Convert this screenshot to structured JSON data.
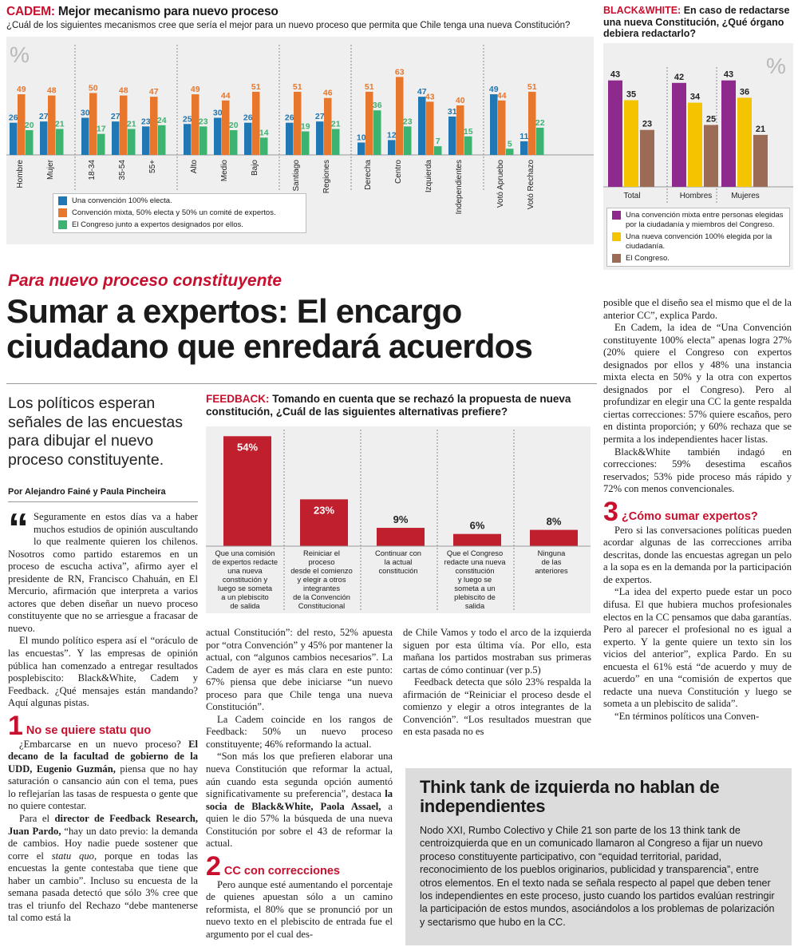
{
  "cadem": {
    "brand": "CADEM:",
    "title": "Mejor mecanismo para nuevo proceso",
    "question": "¿Cuál de los siguientes mecanismos cree que sería el mejor para un nuevo proceso que permita que Chile tenga una nueva Constitución?",
    "pct_symbol": "%"
  },
  "bw": {
    "brand": "BLACK&WHITE:",
    "title": "En caso de redactarse una nueva Constitución, ¿Qué órgano debiera redactarlo?",
    "pct_symbol": "%"
  },
  "feedback": {
    "brand": "FEEDBACK:",
    "title": "Tomando en cuenta que se rechazó la propuesta de nueva constitución, ¿Cuál de las siguientes alternativas prefiere?"
  },
  "chart_data": [
    {
      "type": "bar",
      "source": "CADEM",
      "categories": [
        "Hombre",
        "Mujer",
        "18-34",
        "35-54",
        "55+",
        "Alto",
        "Medio",
        "Bajo",
        "Santiago",
        "Regiones",
        "Derecha",
        "Centro",
        "Izquierda",
        "Independientes",
        "Votó Apruebo",
        "Votó Rechazo"
      ],
      "series": [
        {
          "name": "Una convención 100% electa.",
          "color": "#1f77b4",
          "values": [
            26,
            27,
            30,
            27,
            23,
            25,
            30,
            26,
            26,
            27,
            10,
            12,
            47,
            31,
            49,
            11
          ]
        },
        {
          "name": "Convención mixta, 50% electa y 50% un comité de expertos.",
          "color": "#e8772e",
          "values": [
            49,
            48,
            50,
            48,
            47,
            49,
            44,
            51,
            51,
            46,
            51,
            63,
            43,
            40,
            44,
            51
          ]
        },
        {
          "name": "El Congreso junto a expertos designados por ellos.",
          "color": "#3cb371",
          "values": [
            20,
            21,
            17,
            21,
            24,
            23,
            20,
            14,
            19,
            21,
            36,
            23,
            7,
            15,
            5,
            22
          ]
        }
      ]
    },
    {
      "type": "bar",
      "source": "BLACK&WHITE",
      "categories": [
        "Total",
        "Hombres",
        "Mujeres"
      ],
      "series": [
        {
          "name": "Una convención mixta entre personas elegidas por la ciudadanía y miembros del Congreso.",
          "color": "#8e2a8e",
          "values": [
            43,
            42,
            43
          ]
        },
        {
          "name": "Una nueva convención 100% elegida por la ciudadanía.",
          "color": "#f5c400",
          "values": [
            35,
            34,
            36
          ]
        },
        {
          "name": "El Congreso.",
          "color": "#9b6b55",
          "values": [
            23,
            25,
            21
          ]
        }
      ]
    },
    {
      "type": "bar",
      "source": "FEEDBACK",
      "categories": [
        "Que una comisión de expertos redacte una nueva constitución y luego se someta a un plebiscito de salida",
        "Reiniciar el proceso desde el comienzo y elegir a otros integrantes de la Convención Constitucional",
        "Continuar con la actual constitución",
        "Que el Congreso redacte una nueva constitución y luego se someta a un plebiscito de salida",
        "Ninguna de las anteriores"
      ],
      "category_lines": [
        [
          "Que una comisión",
          "de expertos redacte",
          "una nueva",
          "constitución y",
          "luego se someta",
          "a un plebiscito",
          "de salida"
        ],
        [
          "Reiniciar el",
          "proceso",
          "desde el comienzo",
          "y elegir a otros",
          "integrantes",
          "de la Convención",
          "Constitucional"
        ],
        [
          "Continuar con",
          "la actual",
          "constitución"
        ],
        [
          "Que el Congreso",
          "redacte una nueva",
          "constitución",
          "y luego se",
          "someta a un",
          "plebiscito de",
          "salida"
        ],
        [
          "Ninguna",
          "de las",
          "anteriores"
        ]
      ],
      "values": [
        54,
        23,
        9,
        6,
        8
      ],
      "value_labels": [
        "54%",
        "23%",
        "9%",
        "6%",
        "8%"
      ],
      "color": "#c0202e"
    }
  ],
  "article": {
    "kicker": "Para nuevo proceso constituyente",
    "headline": "Sumar a expertos: El encargo ciudadano que enredará acuerdos",
    "lede": "Los políticos esperan señales de las encuestas para dibujar el nuevo proceso constituyente.",
    "byline": "Por Alejandro Fainé y Paula Pincheira",
    "dropcap": "“",
    "col1_p1": "Seguramente en estos días va a haber muchos estudios de opinión auscultando lo que realmente quieren los chilenos. Nosotros como partido estaremos en un proceso de escucha activa”, afirmo ayer el presidente de RN, Francisco Chahuán, en El Mercurio, afirmación que interpreta a varios actores que deben diseñar un nuevo proceso constituyente que no se arriesgue a fracasar de nuevo.",
    "col1_p2": "El mundo político espera así el “oráculo de las encuestas”. Y las empresas de opinión pública han comenzado a entregar resultados posplebiscito: Black&White, Cadem y Feedback. ¿Qué mensajes están mandando? Aquí algunas pistas.",
    "sub1_num": "1",
    "sub1": "No se quiere statu quo",
    "col1_p3a": "¿Embarcarse en un nuevo proceso? ",
    "col1_p3b": "El decano de la facultad de gobierno de la UDD, Eugenio Guzmán,",
    "col1_p3c": " piensa que no hay saturación o cansancio aún con el tema, pues lo reflejarían las tasas de respuesta o gente que no quiere contestar.",
    "col1_p4a": "Para el ",
    "col1_p4b": "director de Feedback Research, Juan Pardo,",
    "col1_p4c": " “hay un dato previo: la demanda de cambios. Hoy nadie puede sostener que corre el ",
    "col1_p4d": "statu quo",
    "col1_p4e": ", porque en todas las encuestas la gente contestaba que tiene que haber un cambio”. Incluso su encuesta de la semana pasada detectó que sólo 3% cree que tras el triunfo del Rechazo “debe mantenerse tal como está la",
    "col2_p1": "actual Constitución”: del resto, 52% apuesta por “otra Convención” y 45% por mantener la actual, con “algunos cambios necesarios”. La Cadem de ayer es más clara en este punto: 67% piensa que debe iniciarse “un nuevo proceso para que Chile tenga una nueva Constitución”.",
    "col2_p2": "La Cadem coincide en los rangos de Feedback: 50% un nuevo proceso constituyente; 46% reformando la actual.",
    "col2_p3a": "“Son más los que prefieren elaborar una nueva Constitución que reformar la actual, aún cuando esta segunda opción aumentó significativamente su preferencia”, destaca ",
    "col2_p3b": "la socia de Black&White, Paola Assael,",
    "col2_p3c": " a quien le dio 57% la búsqueda de una nueva Constitución por sobre el 43 de reformar la actual.",
    "sub2_num": "2",
    "sub2": "CC con correcciones",
    "col2_p4": "Pero aunque esté aumentando el porcentaje de quienes apuestan sólo a un camino reformista, el 80% que se pronunció por un nuevo texto en el plebiscito de entrada fue el argumento por el cual des-",
    "col3_p1": "de Chile Vamos y todo el arco de la izquierda siguen por esta última vía. Por ello, esta mañana los partidos mostraban sus primeras cartas de cómo continuar (ver p.5)",
    "col3_p2": "Feedback detecta que sólo 23% respalda la afirmación de “Reiniciar el proceso desde el comienzo y elegir a otros integrantes de la Convención”. “Los resultados muestran que en esta pasada no es",
    "col4_p1": "posible que el diseño sea el mismo que el de la anterior CC”, explica Pardo.",
    "col4_p2": "En Cadem, la idea de “Una Convención constituyente 100% electa” apenas logra 27% (20% quiere el Congreso con expertos designados por ellos y 48% una instancia mixta electa en 50% y la otra con expertos designados por el Congreso). Pero al profundizar en elegir una CC la gente respalda ciertas correcciones: 57% quiere escaños, pero en distinta proporción; y 60% rechaza que se permita a los independientes hacer listas.",
    "col4_p3": "Black&White también indagó en correcciones: 59% desestima escaños reservados; 53% pide proceso más rápido y 72% con menos convencionales.",
    "sub3_num": "3",
    "sub3": "¿Cómo sumar expertos?",
    "col4_p4": "Pero si las conversaciones políticas pueden acordar algunas de las correcciones arriba descritas, donde las encuestas agregan un pelo a la sopa es en la demanda por la participación de expertos.",
    "col4_p5": "“La idea del experto puede estar un poco difusa. El que hubiera muchos profesionales electos en la CC pensamos que daba garantías. Pero al parecer el profesional no es igual a experto. Y la gente quiere un texto sin los vicios del anterior”, explica Pardo. En su encuesta el 61% está “de acuerdo y muy de acuerdo” en una “comisión de expertos que redacte una nueva Constitución y luego se someta a un plebiscito de salida”.",
    "col4_p6": "“En términos políticos una Conven-"
  },
  "thinktank": {
    "headline": "Think tank de izquierda no hablan de independientes",
    "body": "Nodo XXI, Rumbo Colectivo y Chile 21 son parte de los 13 think tank de centroizquierda que en un comunicado llamaron al Congreso a fijar un nuevo proceso constituyente participativo, con “equidad territorial, paridad, reconocimiento de los pueblos originarios, publicidad y transparencia”, entre otros elementos. En el texto nada se señala respecto al papel que deben tener los independientes en este proceso, justo cuando los partidos evalúan restringir la participación de estos mundos, asociándolos a los problemas de polarización y sectarismo que hubo en la CC."
  }
}
